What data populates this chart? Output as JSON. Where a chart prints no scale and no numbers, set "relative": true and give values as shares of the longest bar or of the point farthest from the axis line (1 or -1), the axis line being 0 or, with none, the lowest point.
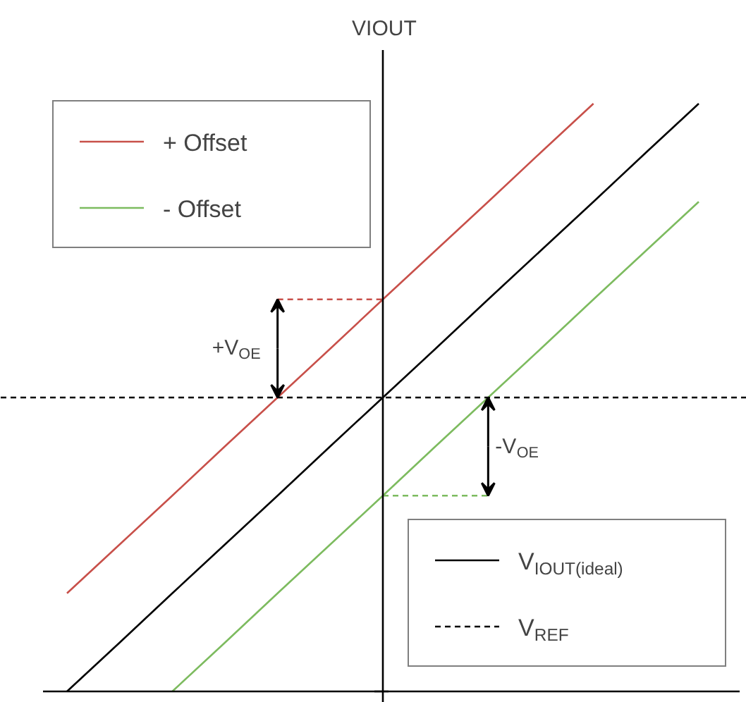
{
  "chart_data": {
    "type": "line",
    "relative": true,
    "ylabel": "VIOUT",
    "legend": "top left",
    "marker": "none",
    "line_style": "solid",
    "categories": [
      null,
      null,
      null,
      null,
      null,
      null,
      null,
      null,
      null,
      null,
      null,
      null,
      null
    ],
    "series": [
      {
        "name": "+ Offset",
        "color": "#c8504a",
        "values": [
          0.167,
          0.25,
          0.333,
          0.417,
          0.5,
          0.583,
          0.667,
          0.75,
          0.833,
          0.917,
          1.0,
          null,
          null
        ]
      },
      {
        "name": "- Offset",
        "color": "#7dbb5f",
        "values": [
          null,
          null,
          0,
          0.083,
          0.167,
          0.25,
          0.333,
          0.417,
          0.5,
          0.583,
          0.667,
          0.75,
          0.833
        ]
      },
      {
        "name": "V$_{IOUT(ideal)}$",
        "color": "#000000",
        "values": [
          0,
          0.083,
          0.167,
          0.25,
          0.333,
          0.417,
          0.5,
          0.583,
          0.667,
          0.75,
          0.833,
          0.917,
          1.0
        ]
      },
      {
        "color": "#c8504a",
        "line_style": "dashed",
        "values": [
          null,
          null,
          null,
          null,
          0.667,
          0.667,
          0.667,
          null,
          null,
          null,
          null,
          null,
          null
        ]
      },
      {
        "color": "#7dbb5f",
        "line_style": "dashed",
        "values": [
          null,
          null,
          null,
          null,
          null,
          null,
          0.333,
          0.333,
          0.333,
          null,
          null,
          null,
          null
        ]
      }
    ],
    "ref_lines": [
      {
        "axis": "y",
        "value": 0.5,
        "label": "V$_{REF}$",
        "color": "#000000",
        "line_style": "dashed"
      }
    ],
    "annotations": [
      "+V$_{OE}$",
      "-V$_{OE}$"
    ]
  }
}
